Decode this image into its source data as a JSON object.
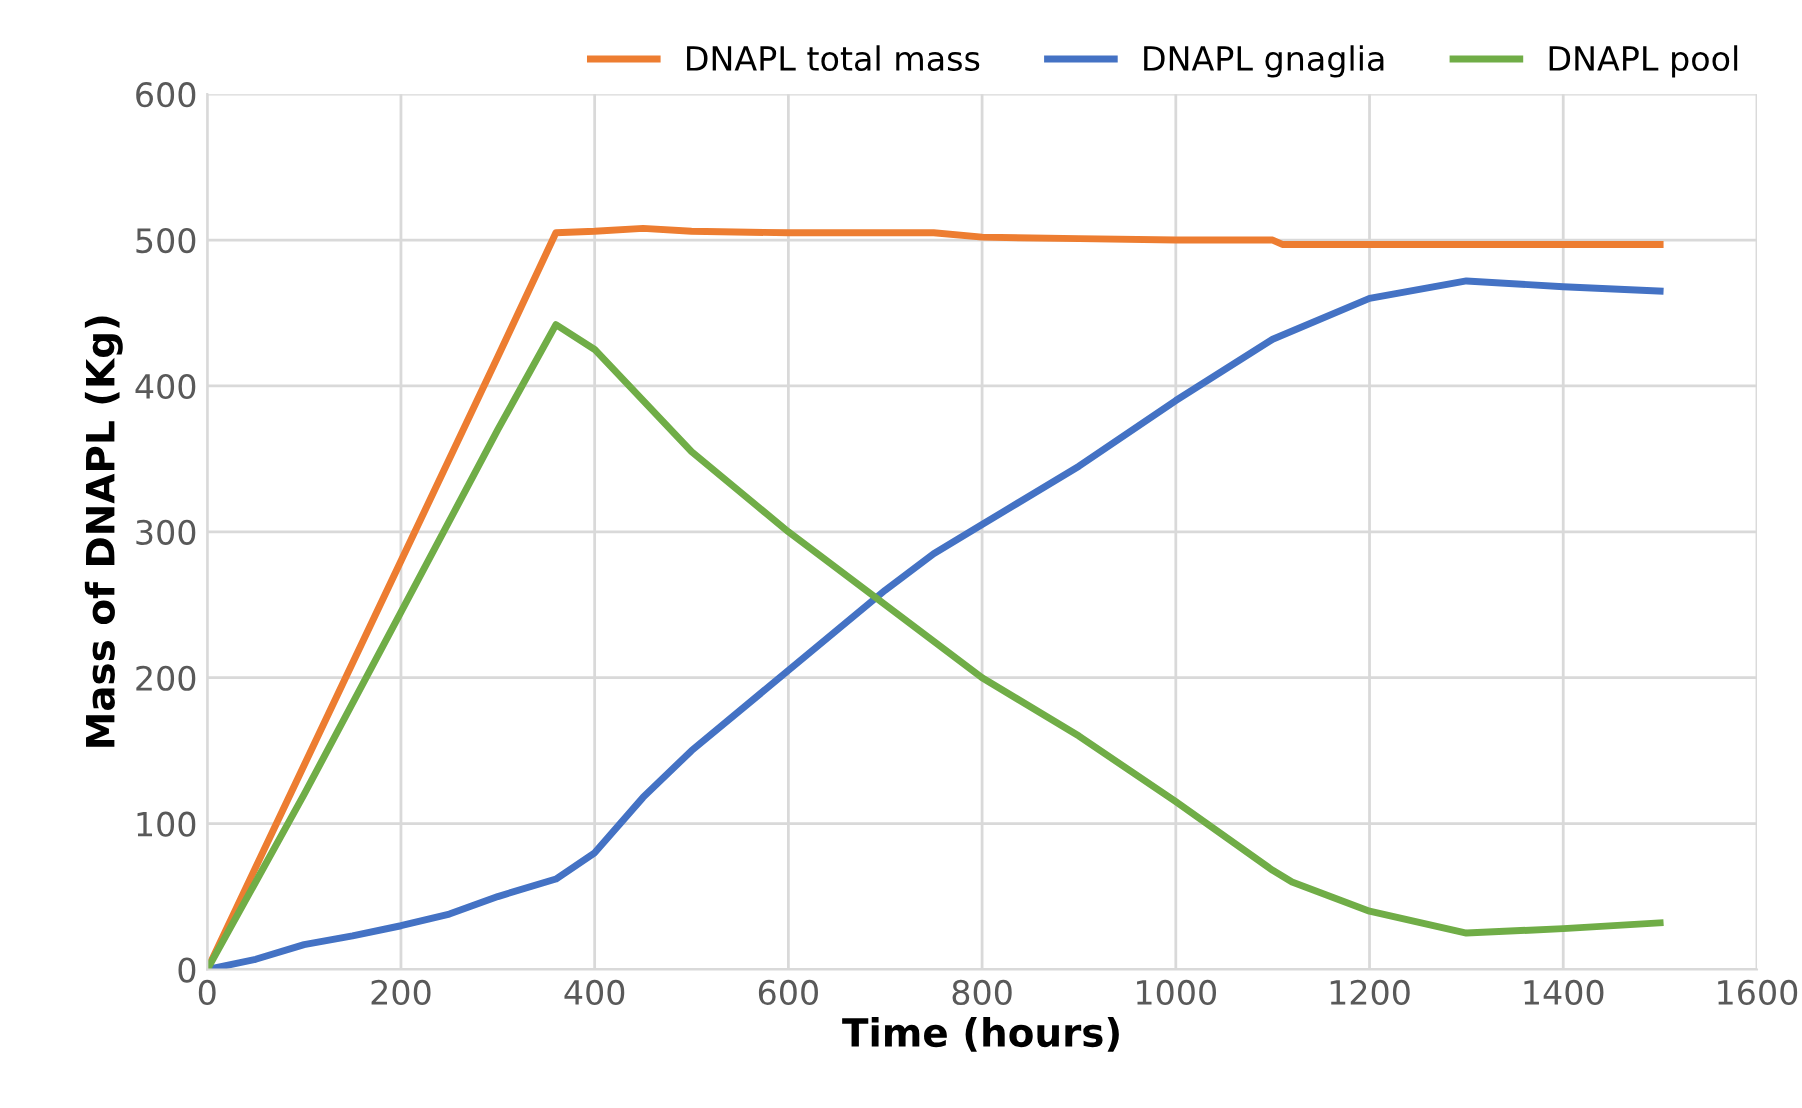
{
  "chart_data": {
    "type": "line",
    "xlabel": "Time (hours)",
    "ylabel": "Mass of DNAPL (Kg)",
    "xlim": [
      0,
      1600
    ],
    "xticks": [
      0,
      200,
      400,
      600,
      800,
      1000,
      1200,
      1400,
      1600
    ],
    "ylim": [
      0,
      600
    ],
    "yticks": [
      0,
      100,
      200,
      300,
      400,
      500,
      600
    ],
    "grid": true,
    "legend": "top",
    "marker": "none",
    "line_style": "solid",
    "series": [
      {
        "name": "DNAPL total mass",
        "color": "#ed7d31",
        "x": [
          0,
          100,
          200,
          300,
          360,
          400,
          450,
          500,
          600,
          750,
          800,
          900,
          1000,
          1100,
          1110,
          1200,
          1300,
          1400,
          1500
        ],
        "values": [
          0,
          140,
          280,
          420,
          505,
          506,
          508,
          506,
          505,
          505,
          502,
          501,
          500,
          500,
          497,
          497,
          497,
          497,
          497
        ]
      },
      {
        "name": "DNAPL gnaglia",
        "color": "#4472c4",
        "x": [
          0,
          50,
          100,
          150,
          200,
          250,
          300,
          360,
          400,
          450,
          500,
          600,
          700,
          750,
          800,
          900,
          1000,
          1100,
          1200,
          1300,
          1400,
          1500
        ],
        "values": [
          0,
          7,
          17,
          23,
          30,
          38,
          50,
          62,
          80,
          118,
          150,
          205,
          260,
          285,
          305,
          345,
          390,
          432,
          460,
          472,
          468,
          465
        ]
      },
      {
        "name": "DNAPL pool",
        "color": "#70ad47",
        "x": [
          0,
          100,
          200,
          300,
          360,
          400,
          500,
          600,
          700,
          750,
          800,
          900,
          1000,
          1100,
          1120,
          1200,
          1300,
          1400,
          1500
        ],
        "values": [
          0,
          120,
          245,
          370,
          442,
          425,
          355,
          300,
          250,
          225,
          200,
          160,
          115,
          68,
          60,
          40,
          25,
          28,
          32
        ]
      }
    ]
  }
}
